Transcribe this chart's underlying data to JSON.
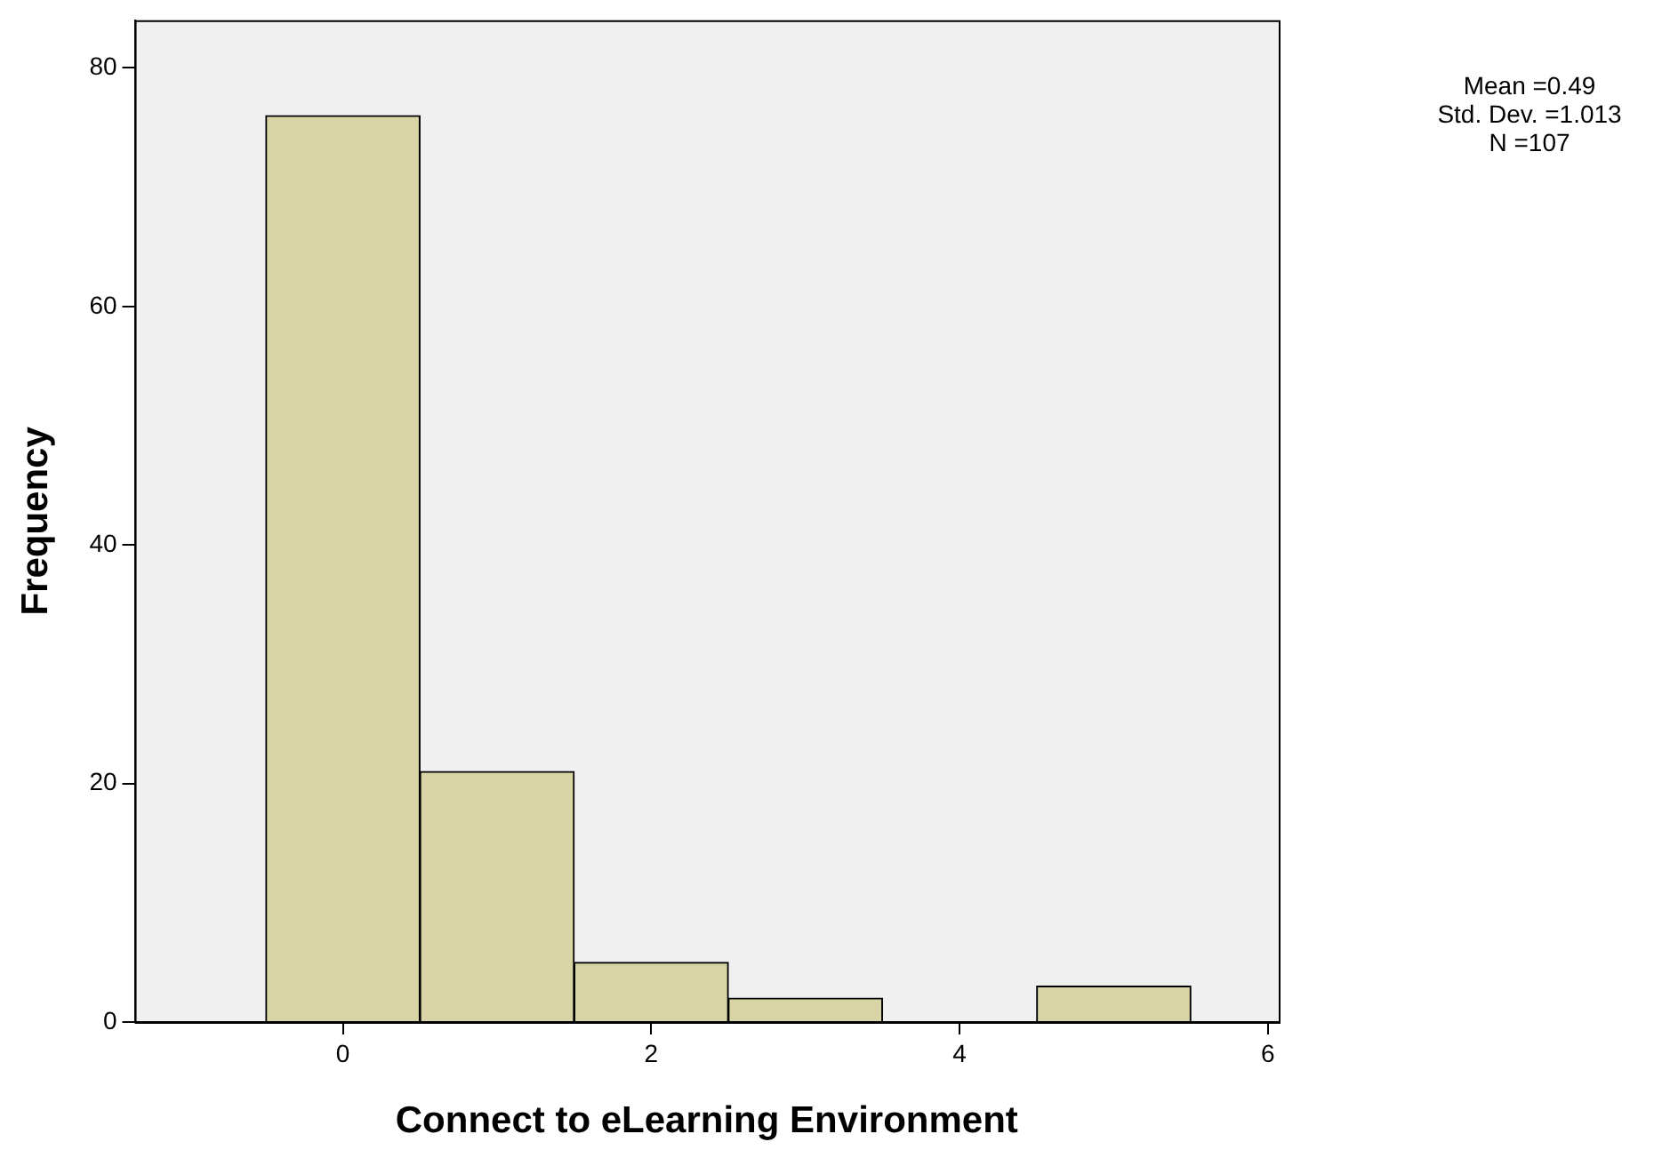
{
  "chart_data": {
    "type": "histogram",
    "xlabel": "Connect to eLearning Environment",
    "ylabel": "Frequency",
    "bins": [
      -0.5,
      0.5,
      1.5,
      2.5,
      3.5,
      4.5,
      5.5
    ],
    "values": [
      76,
      21,
      5,
      2,
      0,
      3
    ],
    "color": "#d9d4a6",
    "xlim": [
      -1.35,
      6.07
    ],
    "ylim": [
      0,
      84
    ],
    "xticks": [
      0,
      2,
      4,
      6
    ],
    "yticks": [
      0,
      20,
      40,
      60,
      80
    ],
    "grid": false,
    "legend": false,
    "annotations": [
      "Mean =0.49",
      "Std. Dev. =1.013",
      "N =107"
    ]
  }
}
